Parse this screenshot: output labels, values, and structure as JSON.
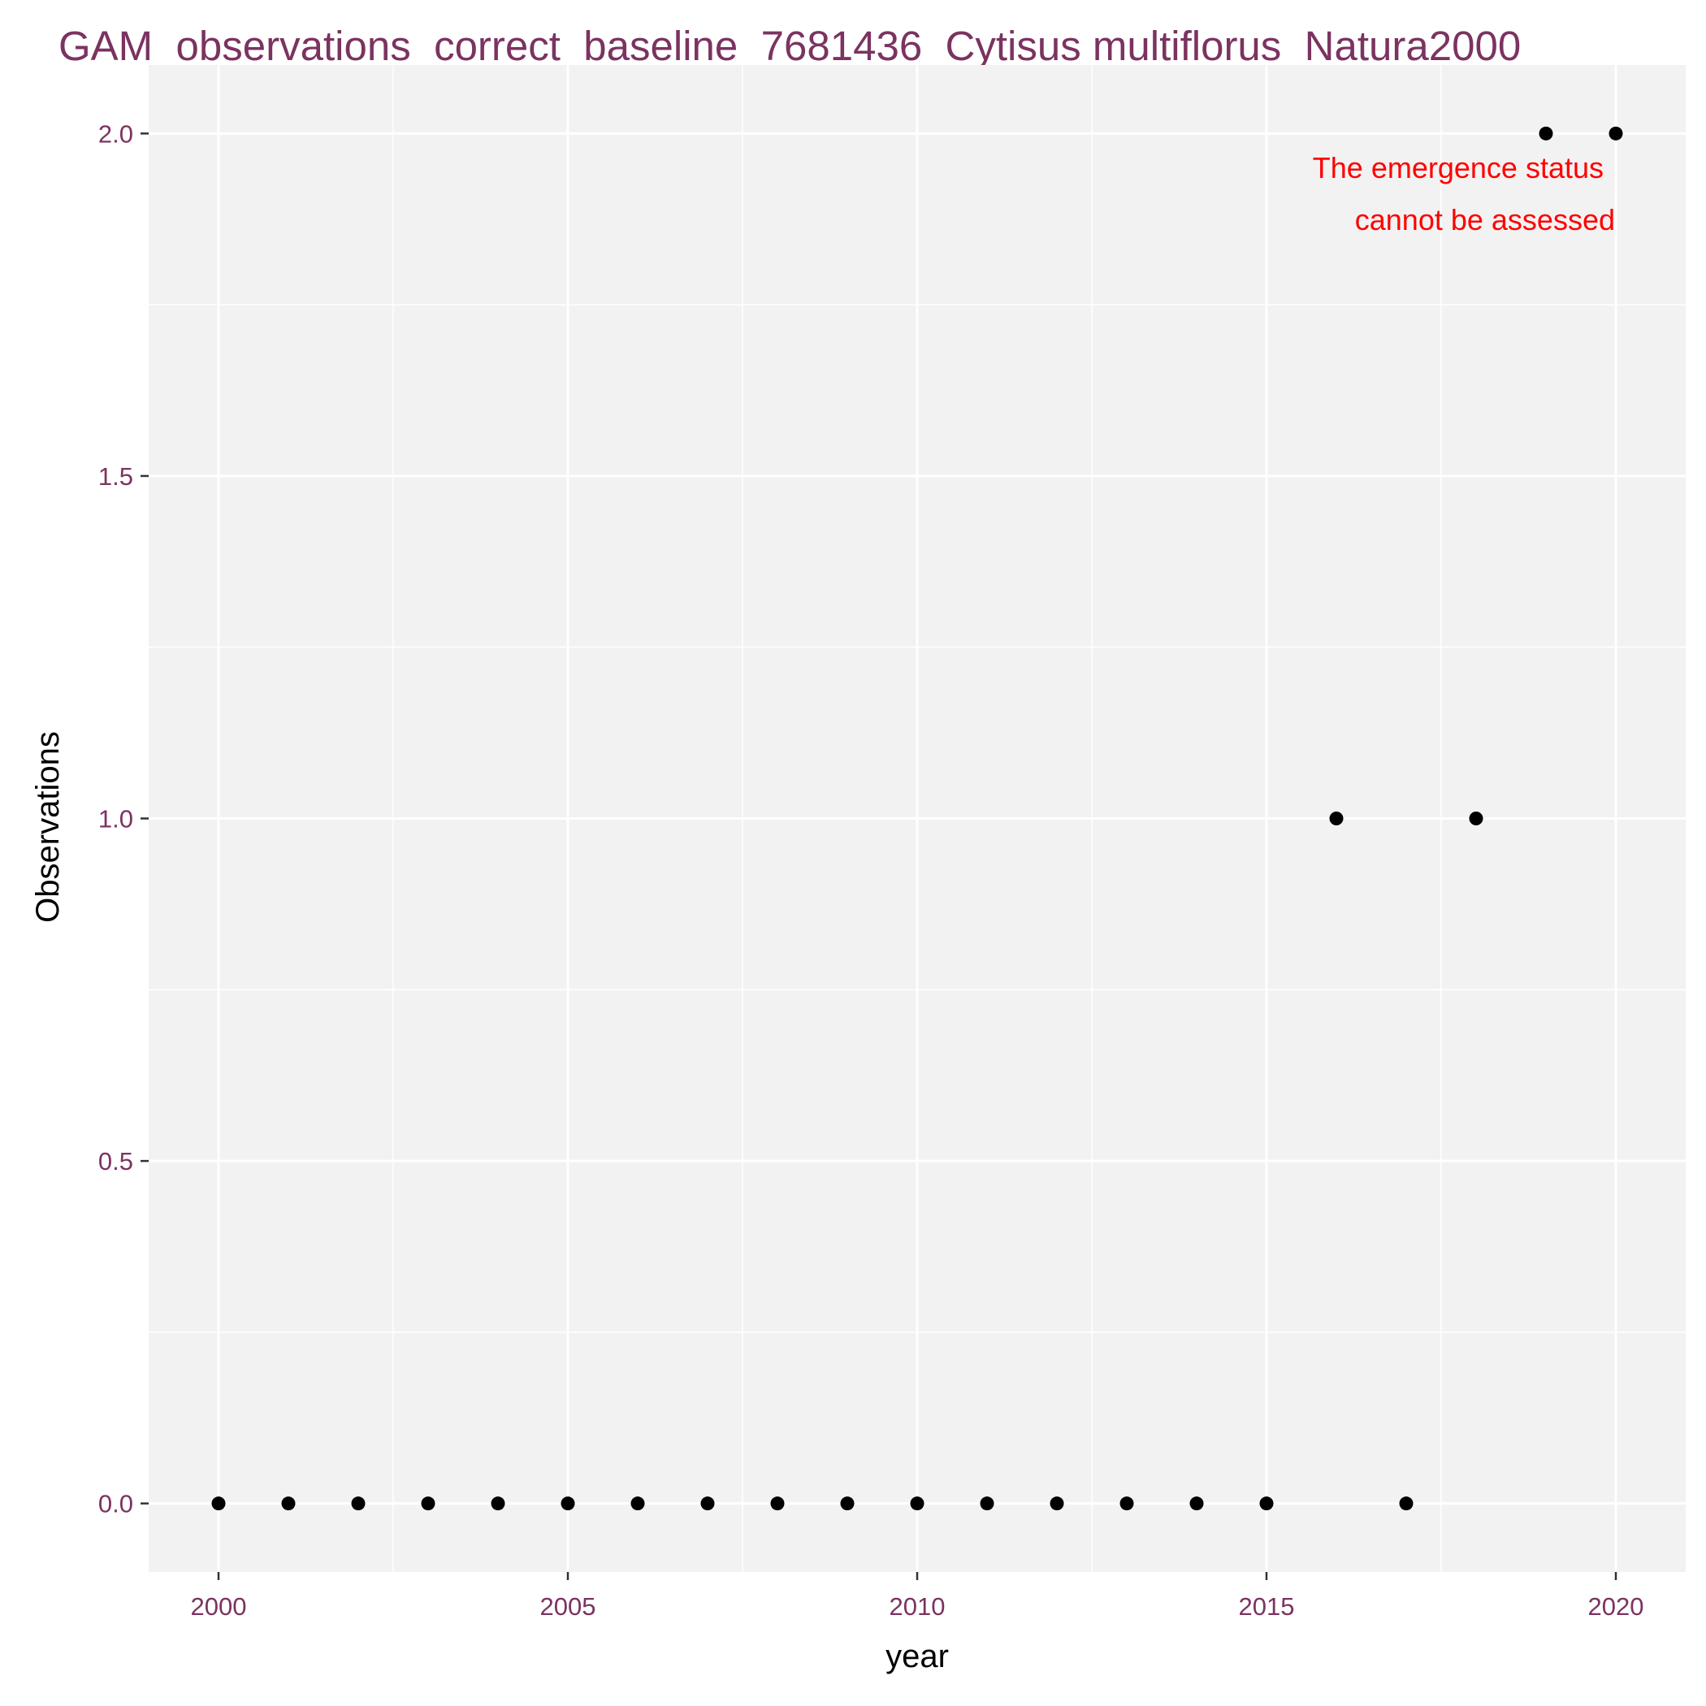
{
  "chart_data": {
    "type": "scatter",
    "title": "GAM_observations_correct_baseline_7681436_Cytisus multiflorus_Natura2000",
    "xlabel": "year",
    "ylabel": "Observations",
    "x_ticks": [
      2000,
      2005,
      2010,
      2015,
      2020
    ],
    "y_ticks": [
      0.0,
      0.5,
      1.0,
      1.5,
      2.0
    ],
    "y_tick_labels": [
      "0.0",
      "0.5",
      "1.0",
      "1.5",
      "2.0"
    ],
    "xlim": [
      1999,
      2021
    ],
    "ylim": [
      -0.1,
      2.1
    ],
    "grid": true,
    "series": [
      {
        "x": [
          2000,
          2001,
          2002,
          2003,
          2004,
          2005,
          2006,
          2007,
          2008,
          2009,
          2010,
          2011,
          2012,
          2013,
          2014,
          2015,
          2016,
          2017,
          2018,
          2019,
          2020
        ],
        "y": [
          0,
          0,
          0,
          0,
          0,
          0,
          0,
          0,
          0,
          0,
          0,
          0,
          0,
          0,
          0,
          0,
          1,
          0,
          1,
          2,
          2
        ]
      }
    ],
    "annotation": [
      "The emergence status",
      "cannot be assessed"
    ],
    "colors": {
      "points": "#000000",
      "panel_background": "#f2f2f2",
      "grid": "#ffffff",
      "title": "#7b3360",
      "tick_labels": "#7b3360",
      "annotation": "#ff0000"
    }
  }
}
